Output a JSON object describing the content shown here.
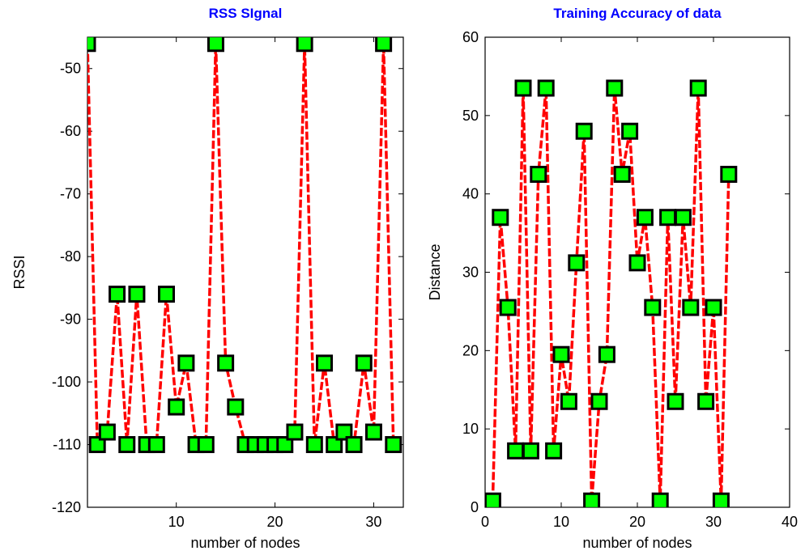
{
  "chart_data": [
    {
      "type": "line",
      "title": "RSS SIgnal",
      "xlabel": "number of nodes",
      "ylabel": "RSSI",
      "xlim": [
        1,
        33
      ],
      "ylim": [
        -120,
        -45
      ],
      "xticks": [
        10,
        20,
        30
      ],
      "yticks": [
        -120,
        -110,
        -100,
        -90,
        -80,
        -70,
        -60,
        -50
      ],
      "line_color": "#ff0000",
      "marker_face": "#00ff00",
      "marker_edge": "#000000",
      "x": [
        1,
        2,
        3,
        4,
        5,
        6,
        7,
        8,
        9,
        10,
        11,
        12,
        13,
        14,
        15,
        16,
        17,
        18,
        19,
        20,
        21,
        22,
        23,
        24,
        25,
        26,
        27,
        28,
        29,
        30,
        31,
        32
      ],
      "y": [
        -46,
        -110,
        -108,
        -86,
        -110,
        -86,
        -110,
        -110,
        -86,
        -104,
        -97,
        -110,
        -110,
        -46,
        -97,
        -104,
        -110,
        -110,
        -110,
        -110,
        -110,
        -108,
        -46,
        -110,
        -97,
        -110,
        -108,
        -110,
        -97,
        -108,
        -46,
        -110
      ]
    },
    {
      "type": "line",
      "title": "Training Accuracy of data",
      "xlabel": "number of nodes",
      "ylabel": "Distance",
      "xlim": [
        0,
        40
      ],
      "ylim": [
        0,
        60
      ],
      "xticks": [
        0,
        10,
        20,
        30,
        40
      ],
      "yticks": [
        0,
        10,
        20,
        30,
        40,
        50,
        60
      ],
      "line_color": "#ff0000",
      "marker_face": "#00ff00",
      "marker_edge": "#000000",
      "x": [
        1,
        2,
        3,
        4,
        5,
        6,
        7,
        8,
        9,
        10,
        11,
        12,
        13,
        14,
        15,
        16,
        17,
        18,
        19,
        20,
        21,
        22,
        23,
        24,
        25,
        26,
        27,
        28,
        29,
        30,
        31,
        32
      ],
      "y": [
        0.8,
        37,
        25.5,
        7.2,
        53.5,
        7.2,
        42.5,
        53.5,
        7.2,
        19.5,
        13.5,
        31.2,
        48,
        0.8,
        13.5,
        19.5,
        53.5,
        42.5,
        48,
        31.2,
        37,
        25.5,
        0.8,
        37,
        13.5,
        37,
        25.5,
        53.5,
        13.5,
        25.5,
        0.8,
        42.5
      ]
    }
  ]
}
